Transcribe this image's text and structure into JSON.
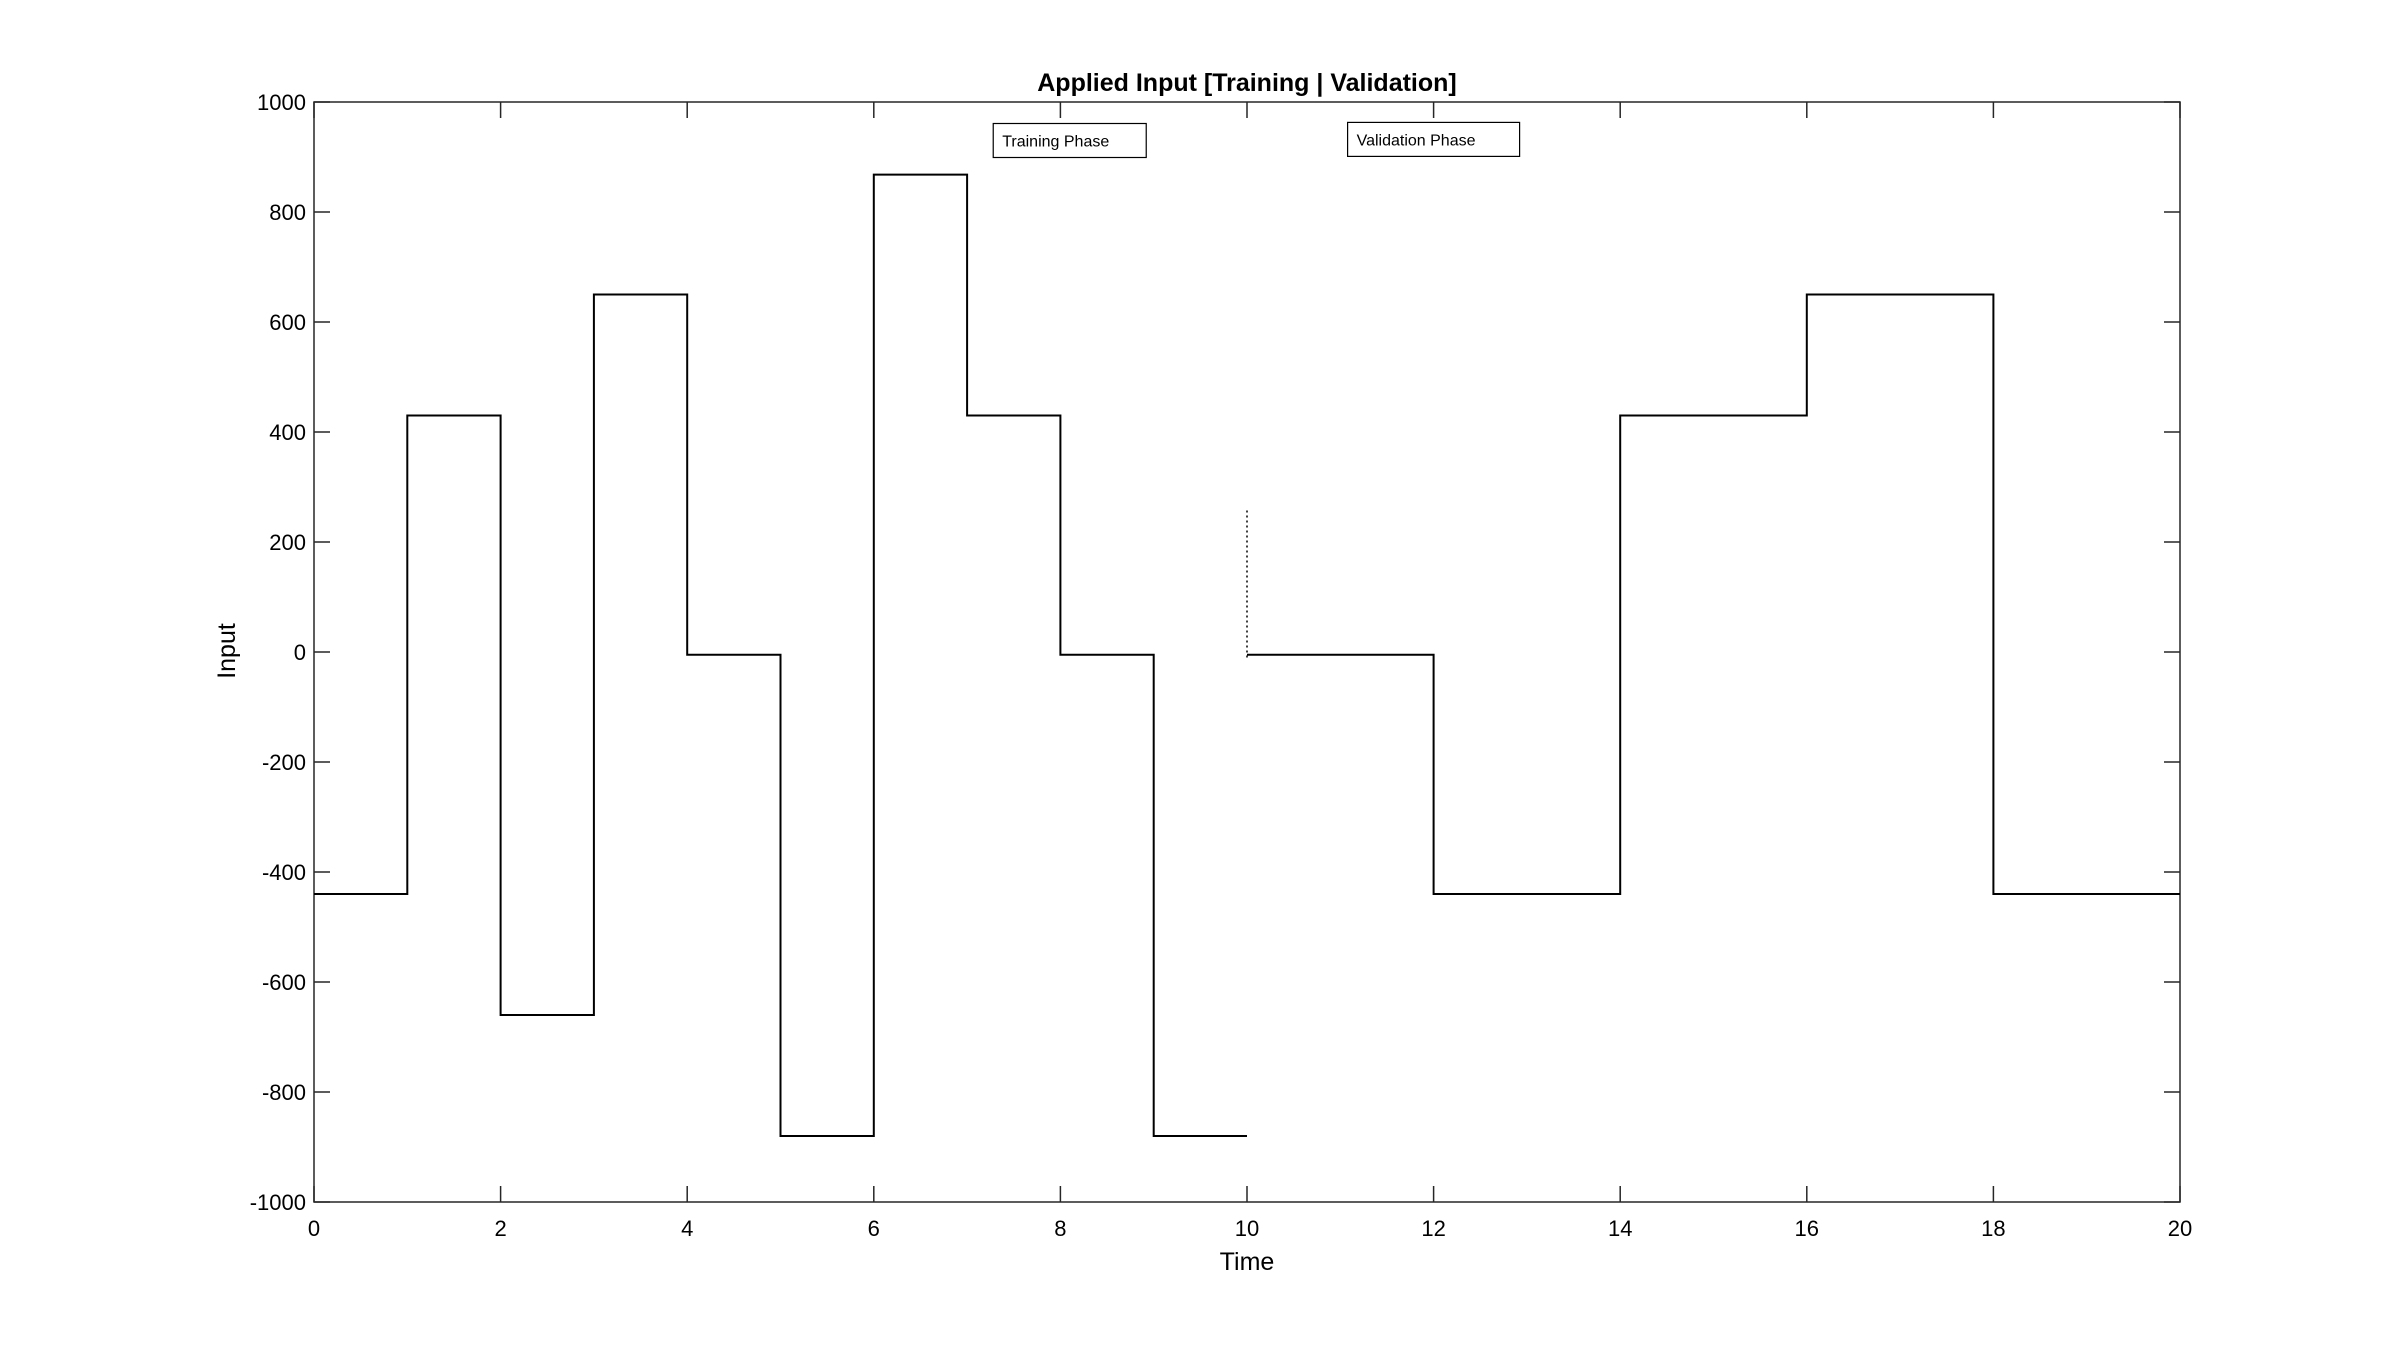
{
  "chart_data": {
    "type": "line",
    "title": "Applied Input [Training | Validation]",
    "xlabel": "Time",
    "ylabel": "Input",
    "xlim": [
      0,
      20
    ],
    "ylim": [
      -1000,
      1000
    ],
    "xticks": [
      "0",
      "2",
      "4",
      "6",
      "8",
      "10",
      "12",
      "14",
      "16",
      "18",
      "20"
    ],
    "yticks": [
      "1000",
      "800",
      "600",
      "400",
      "200",
      "0",
      "-200",
      "-400",
      "-600",
      "-800",
      "-1000"
    ],
    "grid": false,
    "line_color": "#000000",
    "series": [
      {
        "style": "step",
        "x": [
          0,
          1,
          2,
          3,
          4,
          5,
          6,
          7,
          8,
          9,
          10
        ],
        "values": [
          -440,
          430,
          -660,
          650,
          -5,
          -880,
          868,
          430,
          -5,
          -880,
          -880
        ]
      },
      {
        "style": "dotted",
        "x": [
          10,
          10
        ],
        "values": [
          -10,
          260
        ]
      },
      {
        "style": "step",
        "x": [
          10,
          12,
          14,
          16,
          18,
          20
        ],
        "values": [
          -5,
          -440,
          430,
          650,
          -440,
          -440
        ]
      }
    ],
    "annotations": [
      {
        "text": "Training Phase",
        "x": 8.1,
        "y": 930
      },
      {
        "text": "Validation Phase",
        "x": 12.0,
        "y": 932
      }
    ]
  }
}
